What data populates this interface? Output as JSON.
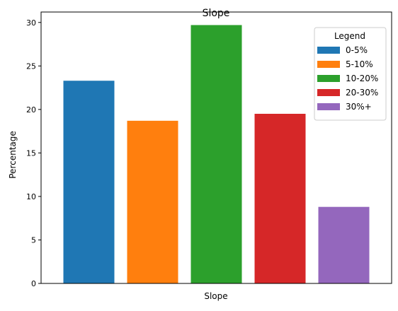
{
  "chart_data": {
    "type": "bar",
    "title": "Slope",
    "xlabel": "Slope",
    "ylabel": "Percentage",
    "ylim": [
      0,
      31.2
    ],
    "y_ticks": [
      0,
      5,
      10,
      15,
      20,
      25,
      30
    ],
    "x_ticks": [],
    "grid": false,
    "legend_title": "Legend",
    "legend_position": "top-right",
    "categories": [
      "0-5%",
      "5-10%",
      "10-20%",
      "20-30%",
      "30%+"
    ],
    "values": [
      23.3,
      18.7,
      29.7,
      19.5,
      8.8
    ],
    "colors": [
      "#1f77b4",
      "#ff7f0e",
      "#2ca02c",
      "#d62728",
      "#9467bd"
    ]
  }
}
